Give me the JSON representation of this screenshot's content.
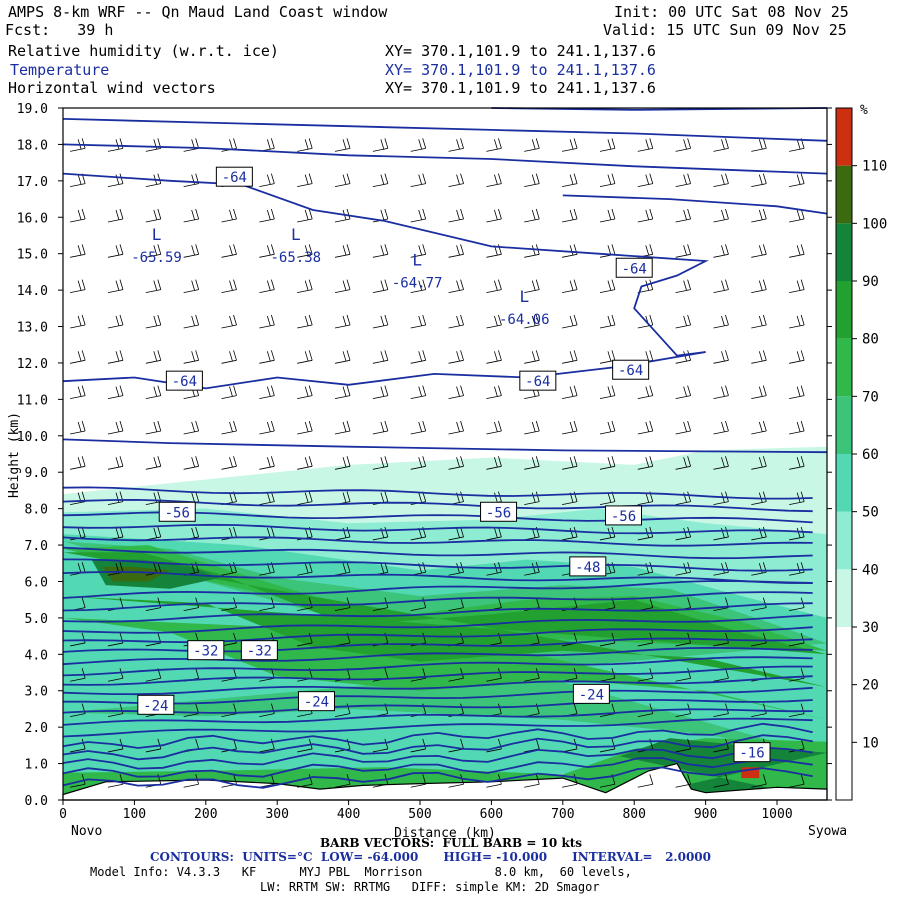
{
  "header": {
    "title": "AMPS 8-km WRF -- Qn Maud Land Coast window",
    "init": "Init: 00 UTC Sat 08 Nov 25",
    "fcst": "Fcst:   39 h",
    "valid": "Valid: 15 UTC Sun 09 Nov 25",
    "fields": [
      {
        "name": "Relative humidity (w.r.t. ice)",
        "xy": "XY= 370.1,101.9 to 241.1,137.6"
      },
      {
        "name": "Temperature",
        "xy": "XY= 370.1,101.9 to 241.1,137.6"
      },
      {
        "name": "Horizontal wind vectors",
        "xy": "XY= 370.1,101.9 to 241.1,137.6"
      }
    ]
  },
  "colors": {
    "contour": "#1a2ea0",
    "rh_levels": [
      "#ffffff",
      "#ffffff",
      "#ffffff",
      "#c8f7e6",
      "#8eecd2",
      "#52d9b4",
      "#3cc47a",
      "#30b84a",
      "#22a030",
      "#14843a",
      "#3c6a10",
      "#cc3010"
    ]
  },
  "footer": {
    "start_label": "Novo",
    "end_label": "Syowa",
    "barb_note": "BARB VECTORS:  FULL BARB = 10 kts",
    "contours": "CONTOURS:  UNITS=°C  LOW= -64.000      HIGH= -10.000      INTERVAL=   2.0000",
    "model_info": "Model Info: V4.3.3   KF      MYJ PBL  Morrison          8.0 km,  60 levels,",
    "model_info2": "LW: RRTM SW: RRTMG   DIFF: simple KM: 2D Smagor"
  },
  "chart_data": {
    "type": "cross-section",
    "title": "Relative humidity (w.r.t. ice), Temperature, Horizontal wind vectors",
    "xlabel": "Distance (km)",
    "ylabel": "Height (km)",
    "xlim": [
      0,
      1070
    ],
    "ylim": [
      0,
      19
    ],
    "xticks": [
      0,
      100,
      200,
      300,
      400,
      500,
      600,
      700,
      800,
      900,
      1000
    ],
    "yticks": [
      "0.0",
      "1.0",
      "2.0",
      "3.0",
      "4.0",
      "5.0",
      "6.0",
      "7.0",
      "8.0",
      "9.0",
      "10.0",
      "11.0",
      "12.0",
      "13.0",
      "14.0",
      "15.0",
      "16.0",
      "17.0",
      "18.0",
      "19.0"
    ],
    "colorbar": {
      "unit": "%",
      "levels": [
        0,
        10,
        20,
        30,
        40,
        50,
        60,
        70,
        80,
        90,
        100,
        110,
        120
      ],
      "tick_labels": [
        "10",
        "20",
        "30",
        "40",
        "50",
        "60",
        "70",
        "80",
        "90",
        "100",
        "110"
      ]
    },
    "contour_labels": [
      {
        "text": "-64",
        "x": 240,
        "y": 17.1
      },
      {
        "text": "-64",
        "x": 800,
        "y": 14.6
      },
      {
        "text": "-64",
        "x": 170,
        "y": 11.5
      },
      {
        "text": "-64",
        "x": 665,
        "y": 11.5
      },
      {
        "text": "-64",
        "x": 795,
        "y": 11.8
      },
      {
        "text": "-56",
        "x": 160,
        "y": 7.9
      },
      {
        "text": "-56",
        "x": 610,
        "y": 7.9
      },
      {
        "text": "-56",
        "x": 785,
        "y": 7.8
      },
      {
        "text": "-48",
        "x": 735,
        "y": 6.4
      },
      {
        "text": "-32",
        "x": 200,
        "y": 4.1
      },
      {
        "text": "-32",
        "x": 275,
        "y": 4.1
      },
      {
        "text": "-24",
        "x": 130,
        "y": 2.6
      },
      {
        "text": "-24",
        "x": 355,
        "y": 2.7
      },
      {
        "text": "-24",
        "x": 740,
        "y": 2.9
      },
      {
        "text": "-16",
        "x": 965,
        "y": 1.3
      }
    ],
    "minima": [
      {
        "label": "L",
        "value": "-65.59",
        "x": 75,
        "y": 15.1
      },
      {
        "label": "L",
        "value": "-65.38",
        "x": 270,
        "y": 15.1
      },
      {
        "label": "L",
        "value": "-64.77",
        "x": 440,
        "y": 14.4
      },
      {
        "label": "L",
        "value": "-64.06",
        "x": 590,
        "y": 13.4
      }
    ]
  }
}
